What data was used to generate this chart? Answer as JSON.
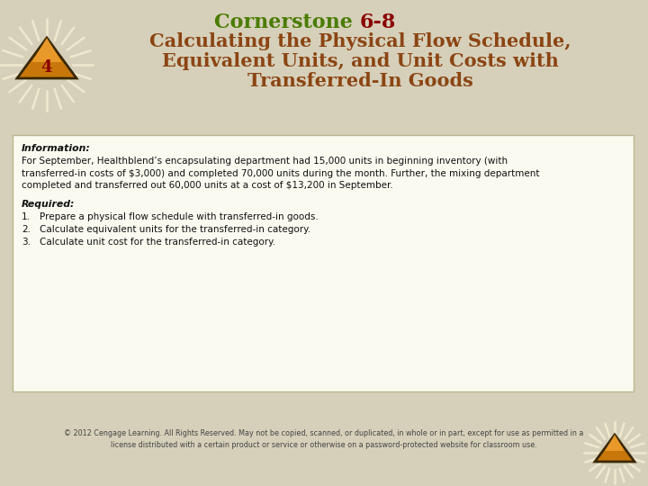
{
  "bg_color": "#d6d0ba",
  "title_line1_part1": "Cornerstone ",
  "title_line1_part2": "6-8",
  "title_line1_color": "#4a7c00",
  "title_line1_num_color": "#8B0000",
  "title_line2": "Calculating the Physical Flow Schedule,",
  "title_line3": "Equivalent Units, and Unit Costs with",
  "title_line4": "Transferred-In Goods",
  "title_color": "#8B4513",
  "info_label": "Information:",
  "info_text_line1": "For September, Healthblend’s encapsulating department had 15,000 units in beginning inventory (with",
  "info_text_line2": "transferred-in costs of $3,000) and completed 70,000 units during the month. Further, the mixing department",
  "info_text_line3": "completed and transferred out 60,000 units at a cost of $13,200 in September.",
  "required_label": "Required:",
  "required_items": [
    "Prepare a physical flow schedule with transferred-in goods.",
    "Calculate equivalent units for the transferred-in category.",
    "Calculate unit cost for the transferred-in category."
  ],
  "box_bg": "#fafaf0",
  "box_border": "#b8b890",
  "footer_text_line1": "© 2012 Cengage Learning. All Rights Reserved. May not be copied, scanned, or duplicated, in whole or in part, except for use as permitted in a",
  "footer_text_line2": "license distributed with a certain product or service or otherwise on a password-protected website for classroom use.",
  "footer_color": "#444444",
  "diamond_color_outer": "#c8780a",
  "diamond_color_top": "#f0a030",
  "diamond_number": "4",
  "number_color": "#8B0000",
  "ray_color": "#f0ead0"
}
